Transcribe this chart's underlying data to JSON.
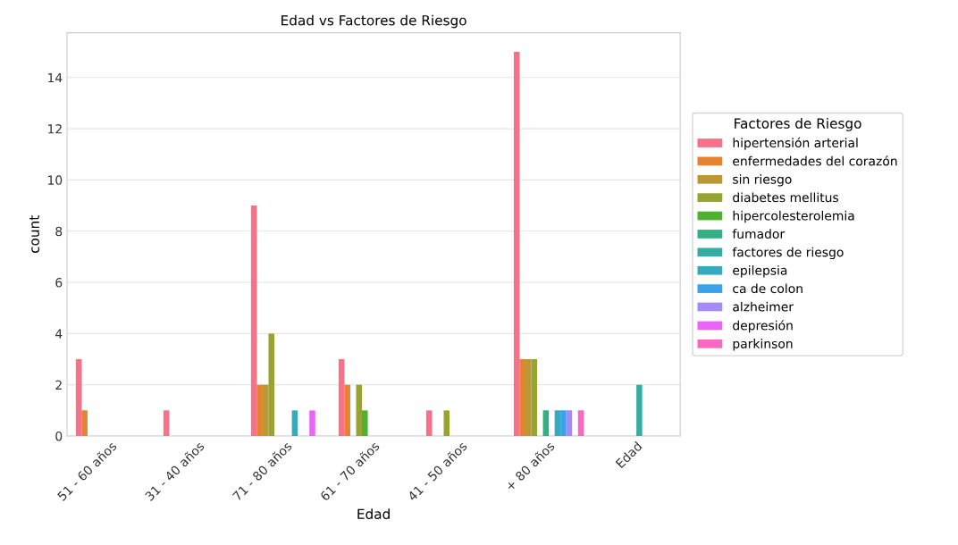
{
  "chart_data": {
    "type": "bar",
    "title": "Edad vs Factores de Riesgo",
    "xlabel": "Edad",
    "ylabel": "count",
    "legend_title": "Factores de Riesgo",
    "categories": [
      "51 - 60 años",
      "31 - 40 años",
      "71 - 80 años",
      "61 - 70 años",
      "41 - 50 años",
      "+ 80 años",
      "Edad"
    ],
    "series": [
      {
        "name": "hipertensión arterial",
        "color": "#f77189",
        "values": [
          3,
          1,
          9,
          3,
          1,
          15,
          0
        ]
      },
      {
        "name": "enfermedades del corazón",
        "color": "#e68332",
        "values": [
          1,
          0,
          2,
          2,
          0,
          3,
          0
        ]
      },
      {
        "name": "sin riesgo",
        "color": "#bb9832",
        "values": [
          0,
          0,
          2,
          0,
          0,
          3,
          0
        ]
      },
      {
        "name": "diabetes mellitus",
        "color": "#97a431",
        "values": [
          0,
          0,
          4,
          2,
          1,
          3,
          0
        ]
      },
      {
        "name": "hipercolesterolemia",
        "color": "#50b131",
        "values": [
          0,
          0,
          0,
          1,
          0,
          0,
          0
        ]
      },
      {
        "name": "fumador",
        "color": "#34af84",
        "values": [
          0,
          0,
          0,
          0,
          0,
          1,
          0
        ]
      },
      {
        "name": "factores de riesgo",
        "color": "#36ada4",
        "values": [
          0,
          0,
          0,
          0,
          0,
          0,
          2
        ]
      },
      {
        "name": "epilepsia",
        "color": "#38aabf",
        "values": [
          0,
          0,
          1,
          0,
          0,
          1,
          0
        ]
      },
      {
        "name": "ca de colon",
        "color": "#3ba3ec",
        "values": [
          0,
          0,
          0,
          0,
          0,
          1,
          0
        ]
      },
      {
        "name": "alzheimer",
        "color": "#a48cf4",
        "values": [
          0,
          0,
          0,
          0,
          0,
          1,
          0
        ]
      },
      {
        "name": "depresión",
        "color": "#e866f4",
        "values": [
          0,
          0,
          1,
          0,
          0,
          0,
          0
        ]
      },
      {
        "name": "parkinson",
        "color": "#f668c2",
        "values": [
          0,
          0,
          0,
          0,
          0,
          1,
          0
        ]
      }
    ],
    "ylim": [
      0,
      15.75
    ],
    "yticks": [
      0,
      2,
      4,
      6,
      8,
      10,
      12,
      14
    ],
    "grid": "y",
    "legend": "right"
  }
}
